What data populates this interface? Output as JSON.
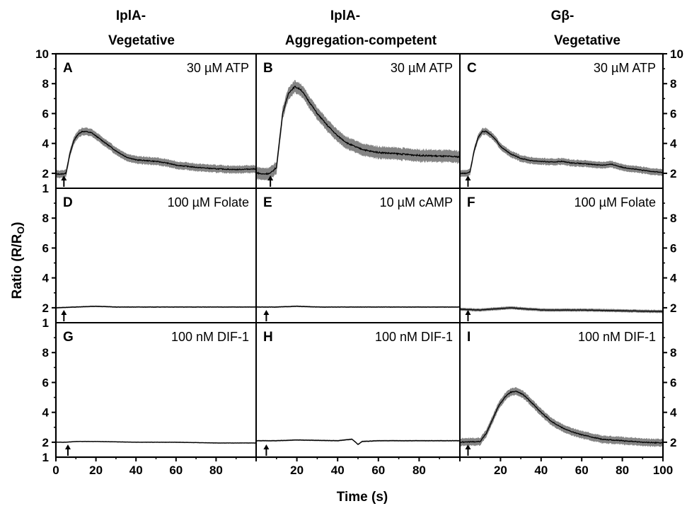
{
  "column_titles": [
    {
      "line1": "IplA-",
      "line2": "Vegetative"
    },
    {
      "line1": "IplA-",
      "line2": "Aggregation-competent"
    },
    {
      "line1": "Gβ-",
      "line2": "Vegetative"
    }
  ],
  "chart_data": {
    "type": "line",
    "xlabel": "Time (s)",
    "ylabel": "Ratio (R/Ro)",
    "xlim": [
      0,
      100
    ],
    "ylim": [
      1,
      10
    ],
    "x_ticks": [
      0,
      20,
      40,
      60,
      80,
      100
    ],
    "y_ticks": [
      2,
      4,
      6,
      8,
      10
    ],
    "y_bottom_label": 1,
    "panels": [
      {
        "letter": "A",
        "condition": "30 µM ATP",
        "row": 0,
        "col": 0,
        "arrow_x": 4,
        "x": [
          0,
          3,
          5,
          7,
          9,
          11,
          13,
          15,
          18,
          20,
          25,
          30,
          35,
          40,
          45,
          50,
          55,
          60,
          70,
          80,
          90,
          100
        ],
        "y": [
          1.95,
          1.95,
          2.0,
          3.3,
          4.2,
          4.6,
          4.8,
          4.8,
          4.7,
          4.5,
          4.0,
          3.5,
          3.1,
          2.9,
          2.85,
          2.8,
          2.7,
          2.55,
          2.4,
          2.3,
          2.25,
          2.3
        ],
        "sem_band": 0.25
      },
      {
        "letter": "B",
        "condition": "30 µM ATP",
        "row": 0,
        "col": 1,
        "arrow_x": 7,
        "x": [
          0,
          3,
          7,
          10,
          13,
          16,
          19,
          22,
          25,
          30,
          35,
          40,
          45,
          50,
          55,
          60,
          70,
          80,
          90,
          100
        ],
        "y": [
          2.05,
          1.95,
          2.0,
          2.4,
          6.0,
          7.4,
          7.8,
          7.6,
          7.0,
          6.0,
          5.2,
          4.5,
          4.0,
          3.7,
          3.5,
          3.4,
          3.3,
          3.2,
          3.15,
          3.1
        ],
        "sem_band": 0.4
      },
      {
        "letter": "C",
        "condition": "30 µM ATP",
        "row": 0,
        "col": 2,
        "arrow_x": 4,
        "x": [
          0,
          3,
          5,
          7,
          9,
          11,
          13,
          15,
          18,
          20,
          25,
          30,
          35,
          40,
          45,
          50,
          55,
          60,
          70,
          75,
          80,
          90,
          100
        ],
        "y": [
          2.0,
          2.0,
          2.1,
          3.5,
          4.4,
          4.8,
          4.8,
          4.6,
          4.2,
          3.8,
          3.3,
          3.0,
          2.85,
          2.8,
          2.75,
          2.8,
          2.7,
          2.65,
          2.55,
          2.6,
          2.4,
          2.2,
          2.05
        ],
        "sem_band": 0.22
      },
      {
        "letter": "D",
        "condition": "100 µM Folate",
        "row": 1,
        "col": 0,
        "arrow_x": 4,
        "x": [
          0,
          10,
          20,
          30,
          40,
          60,
          80,
          100
        ],
        "y": [
          2.0,
          2.05,
          2.1,
          2.05,
          2.05,
          2.05,
          2.05,
          2.05
        ],
        "sem_band": 0.05
      },
      {
        "letter": "E",
        "condition": "10 µM cAMP",
        "row": 1,
        "col": 1,
        "arrow_x": 5,
        "x": [
          0,
          10,
          20,
          30,
          40,
          60,
          80,
          100
        ],
        "y": [
          2.05,
          2.05,
          2.1,
          2.05,
          2.05,
          2.05,
          2.05,
          2.05
        ],
        "sem_band": 0.05
      },
      {
        "letter": "F",
        "condition": "100 µM Folate",
        "row": 1,
        "col": 2,
        "arrow_x": 4,
        "x": [
          0,
          10,
          20,
          25,
          30,
          40,
          60,
          80,
          100
        ],
        "y": [
          1.9,
          1.85,
          1.95,
          2.0,
          1.95,
          1.85,
          1.85,
          1.8,
          1.75
        ],
        "sem_band": 0.1
      },
      {
        "letter": "G",
        "condition": "100 nM DIF-1",
        "row": 2,
        "col": 0,
        "arrow_x": 6,
        "x": [
          0,
          5,
          10,
          20,
          40,
          60,
          80,
          100
        ],
        "y": [
          2.0,
          2.0,
          2.05,
          2.05,
          2.0,
          2.0,
          1.95,
          1.95
        ],
        "sem_band": 0.04
      },
      {
        "letter": "H",
        "condition": "100 nM DIF-1",
        "row": 2,
        "col": 1,
        "arrow_x": 5,
        "x": [
          0,
          10,
          20,
          40,
          47,
          48,
          50,
          52,
          60,
          80,
          100
        ],
        "y": [
          2.1,
          2.1,
          2.15,
          2.1,
          2.2,
          2.1,
          1.85,
          2.05,
          2.1,
          2.1,
          2.1
        ],
        "sem_band": 0.05
      },
      {
        "letter": "I",
        "condition": "100 nM DIF-1",
        "row": 2,
        "col": 2,
        "arrow_x": 4,
        "x": [
          0,
          10,
          13,
          16,
          19,
          22,
          25,
          28,
          31,
          35,
          40,
          45,
          50,
          55,
          60,
          70,
          80,
          90,
          100
        ],
        "y": [
          2.0,
          2.05,
          2.6,
          3.5,
          4.4,
          5.0,
          5.35,
          5.4,
          5.2,
          4.7,
          4.0,
          3.4,
          3.0,
          2.7,
          2.5,
          2.2,
          2.1,
          2.0,
          1.95
        ],
        "sem_band": 0.25
      }
    ]
  }
}
